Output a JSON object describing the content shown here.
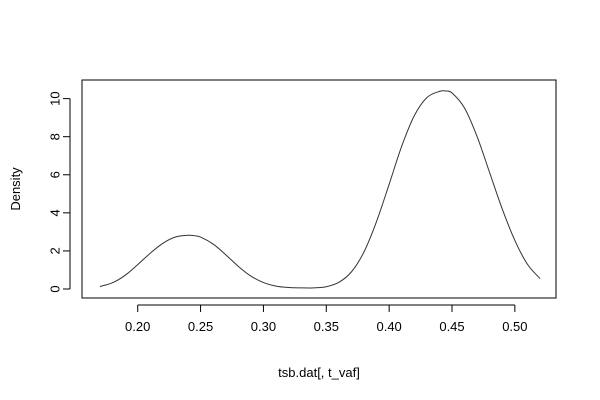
{
  "chart_data": {
    "type": "line",
    "title": "",
    "xlabel": "tsb.dat[, t_vaf]",
    "ylabel": "Density",
    "xlim": [
      0.17,
      0.52
    ],
    "ylim": [
      0,
      10.4
    ],
    "x_ticks": [
      "0.20",
      "0.25",
      "0.30",
      "0.35",
      "0.40",
      "0.45",
      "0.50"
    ],
    "y_ticks": [
      "0",
      "2",
      "4",
      "6",
      "8",
      "10"
    ],
    "grid": false,
    "legend": "none",
    "line_color": "#333333",
    "series": [
      {
        "x": [
          0.17,
          0.18,
          0.19,
          0.2,
          0.21,
          0.22,
          0.23,
          0.24,
          0.245,
          0.25,
          0.26,
          0.27,
          0.28,
          0.29,
          0.3,
          0.31,
          0.32,
          0.33,
          0.34,
          0.35,
          0.36,
          0.37,
          0.38,
          0.39,
          0.4,
          0.41,
          0.42,
          0.43,
          0.44,
          0.445,
          0.45,
          0.46,
          0.47,
          0.48,
          0.49,
          0.5,
          0.51,
          0.52
        ],
        "y": [
          0.13,
          0.33,
          0.72,
          1.28,
          1.88,
          2.4,
          2.73,
          2.82,
          2.8,
          2.73,
          2.36,
          1.8,
          1.19,
          0.68,
          0.34,
          0.15,
          0.08,
          0.06,
          0.06,
          0.12,
          0.35,
          0.9,
          1.95,
          3.55,
          5.5,
          7.5,
          9.1,
          10.05,
          10.38,
          10.4,
          10.3,
          9.5,
          8.0,
          6.1,
          4.2,
          2.55,
          1.3,
          0.55
        ]
      }
    ]
  }
}
